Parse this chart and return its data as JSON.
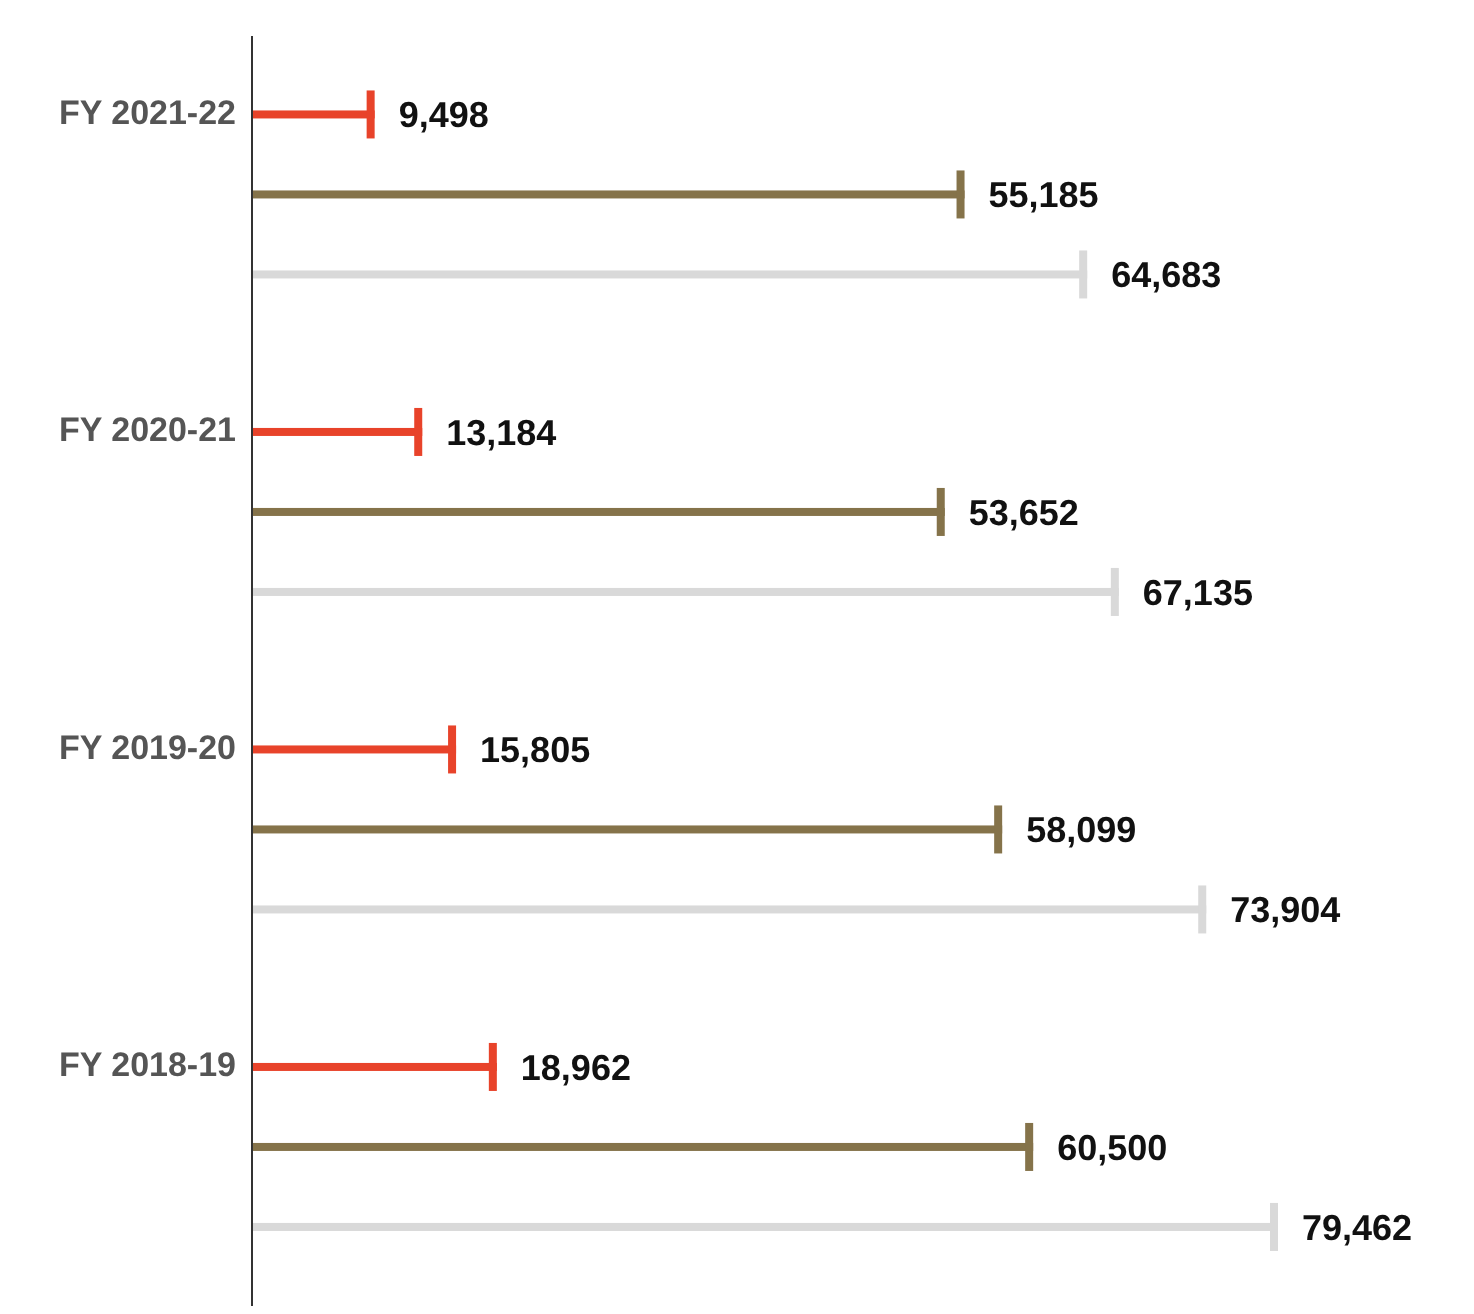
{
  "chart_data": {
    "type": "bar",
    "orientation": "horizontal",
    "categories": [
      "FY 2021-22",
      "FY 2020-21",
      "FY 2019-20",
      "FY 2018-19"
    ],
    "series": [
      {
        "color": "#e8432a",
        "values": [
          9498,
          13184,
          15805,
          18962
        ],
        "value_labels": [
          "9,498",
          "13,184",
          "15,805",
          "18,962"
        ]
      },
      {
        "color": "#85734a",
        "values": [
          55185,
          53652,
          58099,
          60500
        ],
        "value_labels": [
          "55,185",
          "53,652",
          "58,099",
          "60,500"
        ]
      },
      {
        "color": "#d9d9d9",
        "values": [
          64683,
          67135,
          73904,
          79462
        ],
        "value_labels": [
          "64,683",
          "67,135",
          "73,904",
          "79,462"
        ]
      }
    ],
    "grid": false,
    "legend": false
  }
}
